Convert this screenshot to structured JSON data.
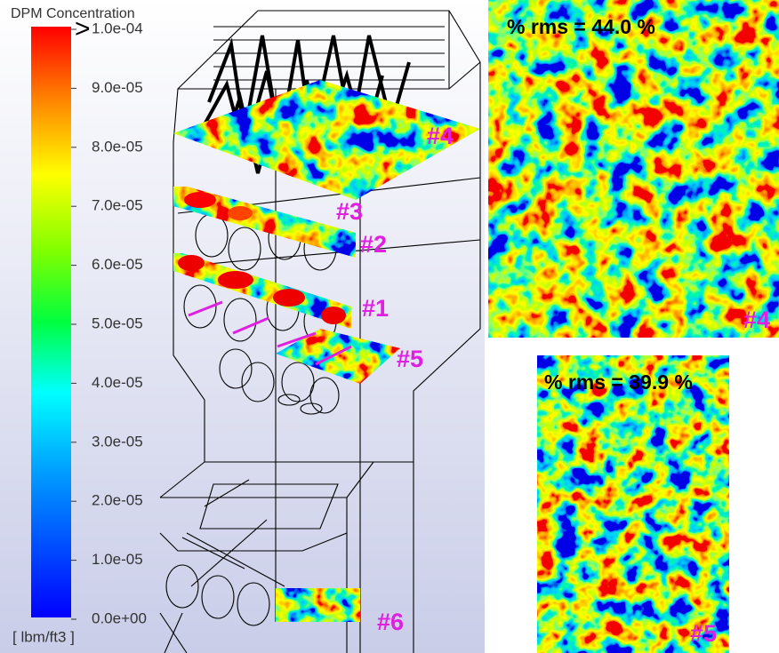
{
  "colorbar": {
    "title": "DPM Concentration",
    "over_symbol": ">",
    "ticks": [
      "1.0e-04",
      "9.0e-05",
      "8.0e-05",
      "7.0e-05",
      "6.0e-05",
      "5.0e-05",
      "4.0e-05",
      "3.0e-05",
      "2.0e-05",
      "1.0e-05",
      "0.0e+00"
    ],
    "unit": "[ lbm/ft3 ]"
  },
  "planes": {
    "labels": [
      "#4",
      "#3",
      "#2",
      "#1",
      "#5",
      "#6"
    ]
  },
  "panels": [
    {
      "rms": "% rms = 44.0 %",
      "label": "#4"
    },
    {
      "rms": "% rms = 39.9 %",
      "label": "#5"
    }
  ]
}
